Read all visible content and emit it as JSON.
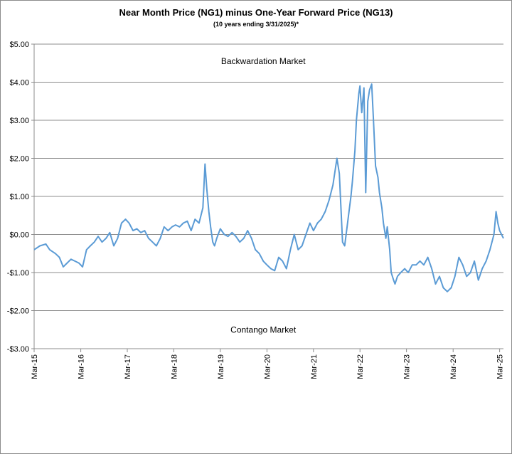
{
  "chart_data": {
    "type": "line",
    "title": "Near Month Price (NG1) minus One-Year Forward Price (NG13)",
    "subtitle": "(10 years ending  3/31/2025)*",
    "xlabel": "",
    "ylabel": "",
    "ylim": [
      -3,
      5
    ],
    "xlim": [
      "2015-03-01",
      "2025-03-31"
    ],
    "grid": "horizontal",
    "y_ticks": [
      5,
      4,
      3,
      2,
      1,
      0,
      -1,
      -2,
      -3
    ],
    "y_tick_labels": [
      "$5.00",
      "$4.00",
      "$3.00",
      "$2.00",
      "$1.00",
      "$0.00",
      "-$1.00",
      "-$2.00",
      "-$3.00"
    ],
    "x_ticks": [
      "2015-03-01",
      "2016-03-01",
      "2017-03-01",
      "2018-03-01",
      "2019-03-01",
      "2020-03-01",
      "2021-03-01",
      "2022-03-01",
      "2023-03-01",
      "2024-03-01",
      "2025-03-01"
    ],
    "x_tick_labels": [
      "Mar-15",
      "Mar-16",
      "Mar-17",
      "Mar-18",
      "Mar-19",
      "Mar-20",
      "Mar-21",
      "Mar-22",
      "Mar-23",
      "Mar-24",
      "Mar-25"
    ],
    "annotations": [
      {
        "text": "Backwardation Market",
        "x": "2020-02-01",
        "y": 4.55
      },
      {
        "text": "Contango Market",
        "x": "2020-02-01",
        "y": -2.5
      }
    ],
    "series_color": "#5b9bd5",
    "series": [
      {
        "name": "",
        "points": [
          [
            "2015-03-01",
            -0.4
          ],
          [
            "2015-04-15",
            -0.3
          ],
          [
            "2015-06-01",
            -0.25
          ],
          [
            "2015-07-01",
            -0.4
          ],
          [
            "2015-08-15",
            -0.5
          ],
          [
            "2015-09-15",
            -0.6
          ],
          [
            "2015-10-15",
            -0.85
          ],
          [
            "2015-11-15",
            -0.75
          ],
          [
            "2015-12-15",
            -0.65
          ],
          [
            "2016-01-15",
            -0.7
          ],
          [
            "2016-02-15",
            -0.75
          ],
          [
            "2016-03-15",
            -0.85
          ],
          [
            "2016-04-15",
            -0.4
          ],
          [
            "2016-05-15",
            -0.3
          ],
          [
            "2016-06-15",
            -0.2
          ],
          [
            "2016-07-15",
            -0.05
          ],
          [
            "2016-08-15",
            -0.2
          ],
          [
            "2016-09-15",
            -0.1
          ],
          [
            "2016-10-15",
            0.05
          ],
          [
            "2016-11-15",
            -0.3
          ],
          [
            "2016-12-15",
            -0.1
          ],
          [
            "2017-01-15",
            0.3
          ],
          [
            "2017-02-15",
            0.4
          ],
          [
            "2017-03-15",
            0.3
          ],
          [
            "2017-04-15",
            0.1
          ],
          [
            "2017-05-15",
            0.15
          ],
          [
            "2017-06-15",
            0.05
          ],
          [
            "2017-07-15",
            0.1
          ],
          [
            "2017-08-15",
            -0.1
          ],
          [
            "2017-09-15",
            -0.2
          ],
          [
            "2017-10-15",
            -0.3
          ],
          [
            "2017-11-15",
            -0.1
          ],
          [
            "2017-12-15",
            0.2
          ],
          [
            "2018-01-15",
            0.1
          ],
          [
            "2018-02-15",
            0.2
          ],
          [
            "2018-03-15",
            0.25
          ],
          [
            "2018-04-15",
            0.2
          ],
          [
            "2018-05-15",
            0.3
          ],
          [
            "2018-06-15",
            0.35
          ],
          [
            "2018-07-15",
            0.1
          ],
          [
            "2018-08-15",
            0.4
          ],
          [
            "2018-09-15",
            0.3
          ],
          [
            "2018-10-15",
            0.7
          ],
          [
            "2018-11-01",
            1.85
          ],
          [
            "2018-11-15",
            1.2
          ],
          [
            "2018-12-01",
            0.6
          ],
          [
            "2018-12-15",
            0.2
          ],
          [
            "2019-01-01",
            -0.2
          ],
          [
            "2019-01-15",
            -0.3
          ],
          [
            "2019-02-01",
            -0.1
          ],
          [
            "2019-03-01",
            0.15
          ],
          [
            "2019-04-01",
            0.0
          ],
          [
            "2019-05-01",
            -0.05
          ],
          [
            "2019-06-01",
            0.05
          ],
          [
            "2019-07-01",
            -0.05
          ],
          [
            "2019-08-01",
            -0.2
          ],
          [
            "2019-09-01",
            -0.1
          ],
          [
            "2019-10-01",
            0.1
          ],
          [
            "2019-11-01",
            -0.1
          ],
          [
            "2019-12-01",
            -0.4
          ],
          [
            "2020-01-01",
            -0.5
          ],
          [
            "2020-02-01",
            -0.7
          ],
          [
            "2020-03-01",
            -0.8
          ],
          [
            "2020-04-01",
            -0.9
          ],
          [
            "2020-05-01",
            -0.95
          ],
          [
            "2020-06-01",
            -0.6
          ],
          [
            "2020-07-01",
            -0.7
          ],
          [
            "2020-08-01",
            -0.9
          ],
          [
            "2020-09-01",
            -0.4
          ],
          [
            "2020-10-01",
            0.0
          ],
          [
            "2020-11-01",
            -0.4
          ],
          [
            "2020-12-01",
            -0.3
          ],
          [
            "2021-01-01",
            0.0
          ],
          [
            "2021-02-01",
            0.3
          ],
          [
            "2021-03-01",
            0.1
          ],
          [
            "2021-04-01",
            0.3
          ],
          [
            "2021-05-01",
            0.4
          ],
          [
            "2021-06-01",
            0.6
          ],
          [
            "2021-07-01",
            0.9
          ],
          [
            "2021-08-01",
            1.3
          ],
          [
            "2021-09-01",
            2.0
          ],
          [
            "2021-09-20",
            1.6
          ],
          [
            "2021-10-01",
            0.8
          ],
          [
            "2021-10-15",
            -0.2
          ],
          [
            "2021-11-01",
            -0.3
          ],
          [
            "2021-11-20",
            0.2
          ],
          [
            "2021-12-01",
            0.5
          ],
          [
            "2021-12-20",
            1.0
          ],
          [
            "2022-01-01",
            1.4
          ],
          [
            "2022-01-20",
            2.2
          ],
          [
            "2022-02-01",
            3.0
          ],
          [
            "2022-02-20",
            3.7
          ],
          [
            "2022-03-01",
            3.9
          ],
          [
            "2022-03-15",
            3.2
          ],
          [
            "2022-04-01",
            3.85
          ],
          [
            "2022-04-15",
            1.1
          ],
          [
            "2022-05-01",
            3.5
          ],
          [
            "2022-05-15",
            3.8
          ],
          [
            "2022-06-01",
            3.95
          ],
          [
            "2022-06-15",
            3.0
          ],
          [
            "2022-07-01",
            1.8
          ],
          [
            "2022-07-20",
            1.5
          ],
          [
            "2022-08-01",
            1.1
          ],
          [
            "2022-08-20",
            0.7
          ],
          [
            "2022-09-01",
            0.3
          ],
          [
            "2022-09-20",
            -0.1
          ],
          [
            "2022-10-01",
            0.2
          ],
          [
            "2022-10-20",
            -0.4
          ],
          [
            "2022-11-01",
            -1.0
          ],
          [
            "2022-11-20",
            -1.2
          ],
          [
            "2022-12-01",
            -1.3
          ],
          [
            "2022-12-20",
            -1.1
          ],
          [
            "2023-01-15",
            -1.0
          ],
          [
            "2023-02-15",
            -0.9
          ],
          [
            "2023-03-15",
            -1.0
          ],
          [
            "2023-04-15",
            -0.8
          ],
          [
            "2023-05-15",
            -0.8
          ],
          [
            "2023-06-15",
            -0.7
          ],
          [
            "2023-07-15",
            -0.8
          ],
          [
            "2023-08-15",
            -0.6
          ],
          [
            "2023-09-15",
            -0.9
          ],
          [
            "2023-10-15",
            -1.3
          ],
          [
            "2023-11-15",
            -1.1
          ],
          [
            "2023-12-15",
            -1.4
          ],
          [
            "2024-01-15",
            -1.5
          ],
          [
            "2024-02-15",
            -1.4
          ],
          [
            "2024-03-15",
            -1.1
          ],
          [
            "2024-04-15",
            -0.6
          ],
          [
            "2024-05-15",
            -0.8
          ],
          [
            "2024-06-15",
            -1.1
          ],
          [
            "2024-07-15",
            -1.0
          ],
          [
            "2024-08-15",
            -0.7
          ],
          [
            "2024-09-15",
            -1.2
          ],
          [
            "2024-10-15",
            -0.9
          ],
          [
            "2024-11-15",
            -0.7
          ],
          [
            "2024-12-15",
            -0.4
          ],
          [
            "2025-01-15",
            0.0
          ],
          [
            "2025-02-01",
            0.6
          ],
          [
            "2025-02-15",
            0.3
          ],
          [
            "2025-03-01",
            0.1
          ],
          [
            "2025-03-31",
            -0.1
          ]
        ]
      }
    ]
  }
}
